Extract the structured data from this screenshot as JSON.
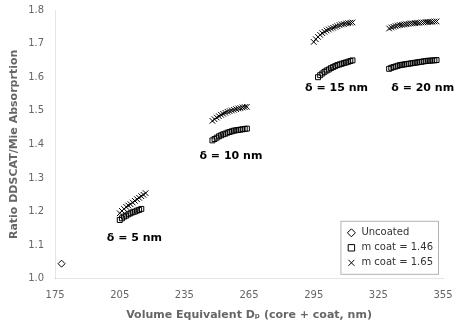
{
  "chart_data": {
    "type": "scatter",
    "xlabel": "Volume Equivalent Dₚ (core + coat, nm)",
    "ylabel": "Ratio DDSCAT/Mie Absorprtion",
    "xlim": [
      175,
      355
    ],
    "ylim": [
      1.0,
      1.8
    ],
    "xticks": [
      175,
      205,
      235,
      265,
      295,
      325,
      355
    ],
    "yticks": [
      {
        "value": 1.0,
        "label": "1.0"
      },
      1.1,
      1.2,
      1.3,
      1.4,
      1.5,
      1.6,
      1.7,
      1.8
    ],
    "grid": false,
    "legend": "lower right",
    "series": [
      {
        "name": "Uncoated",
        "marker": "diamond",
        "color": "black",
        "x": [
          178
        ],
        "values": [
          1.045
        ]
      },
      {
        "name": "m coat = 1.46",
        "marker": "square",
        "color": "black",
        "x": [
          205,
          206,
          207,
          208,
          209,
          210,
          211,
          212,
          213,
          214,
          215,
          248,
          249,
          250,
          251,
          252,
          253,
          254,
          255,
          256,
          257,
          258,
          259,
          260,
          261,
          262,
          263,
          264,
          297,
          298,
          299,
          300,
          301,
          302,
          303,
          304,
          305,
          306,
          307,
          308,
          309,
          310,
          311,
          312,
          313,
          330,
          331,
          332,
          333,
          334,
          335,
          336,
          337,
          338,
          339,
          340,
          341,
          342,
          343,
          344,
          345,
          346,
          347,
          348,
          349,
          350,
          351,
          352
        ],
        "values": [
          1.175,
          1.18,
          1.185,
          1.188,
          1.192,
          1.195,
          1.198,
          1.2,
          1.203,
          1.205,
          1.208,
          1.412,
          1.416,
          1.42,
          1.424,
          1.427,
          1.43,
          1.432,
          1.435,
          1.437,
          1.439,
          1.441,
          1.442,
          1.443,
          1.444,
          1.445,
          1.446,
          1.447,
          1.6,
          1.606,
          1.611,
          1.616,
          1.62,
          1.623,
          1.627,
          1.63,
          1.633,
          1.636,
          1.638,
          1.64,
          1.642,
          1.644,
          1.646,
          1.648,
          1.65,
          1.625,
          1.628,
          1.63,
          1.632,
          1.634,
          1.636,
          1.637,
          1.638,
          1.639,
          1.64,
          1.641,
          1.642,
          1.643,
          1.644,
          1.645,
          1.646,
          1.647,
          1.648,
          1.649,
          1.649,
          1.65,
          1.65,
          1.651
        ]
      },
      {
        "name": "m coat = 1.65",
        "marker": "x",
        "color": "black",
        "x": [
          205,
          206,
          207,
          208,
          209,
          210,
          211,
          212,
          213,
          214,
          215,
          216,
          217,
          248,
          249,
          250,
          251,
          252,
          253,
          254,
          255,
          256,
          257,
          258,
          259,
          260,
          261,
          262,
          263,
          264,
          295,
          296,
          297,
          298,
          299,
          300,
          301,
          302,
          303,
          304,
          305,
          306,
          307,
          308,
          309,
          310,
          311,
          312,
          313,
          330,
          331,
          332,
          333,
          334,
          335,
          336,
          337,
          338,
          339,
          340,
          341,
          342,
          343,
          344,
          345,
          346,
          347,
          348,
          349,
          350,
          351,
          352
        ],
        "values": [
          1.195,
          1.202,
          1.208,
          1.214,
          1.218,
          1.222,
          1.227,
          1.232,
          1.237,
          1.241,
          1.246,
          1.25,
          1.255,
          1.47,
          1.475,
          1.48,
          1.484,
          1.488,
          1.491,
          1.494,
          1.497,
          1.499,
          1.501,
          1.503,
          1.505,
          1.507,
          1.508,
          1.51,
          1.511,
          1.512,
          1.705,
          1.713,
          1.72,
          1.726,
          1.731,
          1.735,
          1.739,
          1.742,
          1.745,
          1.747,
          1.75,
          1.752,
          1.755,
          1.757,
          1.758,
          1.76,
          1.761,
          1.762,
          1.763,
          1.745,
          1.748,
          1.75,
          1.752,
          1.754,
          1.755,
          1.756,
          1.757,
          1.758,
          1.759,
          1.76,
          1.76,
          1.761,
          1.762,
          1.762,
          1.763,
          1.763,
          1.764,
          1.764,
          1.765,
          1.765,
          1.766,
          1.766
        ]
      }
    ],
    "annotations": [
      {
        "text": "δ = 5 nm",
        "x": 199,
        "y": 1.113
      },
      {
        "text": "δ = 10 nm",
        "x": 242,
        "y": 1.358
      },
      {
        "text": "δ = 15 nm",
        "x": 291,
        "y": 1.558
      },
      {
        "text": "δ = 20 nm",
        "x": 331,
        "y": 1.558
      }
    ]
  }
}
